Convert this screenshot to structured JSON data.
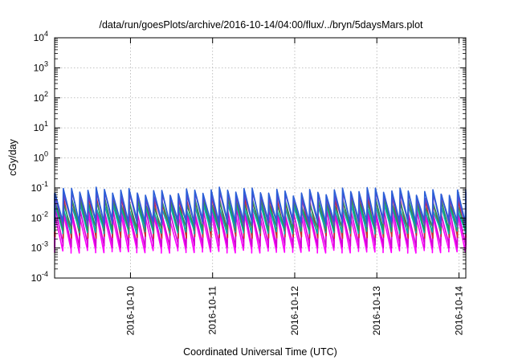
{
  "chart_data": {
    "type": "line",
    "title": "/data/run/goesPlots/archive/2016-10-14/04:00/flux/../bryn/5daysMars.plot",
    "xlabel": "Coordinated Universal Time (UTC)",
    "ylabel": "cGy/day",
    "y_scale": "log",
    "ylim": [
      0.0001,
      10000
    ],
    "xlim": [
      "2016-10-09 01:50",
      "2016-10-14 02:00"
    ],
    "grid": true,
    "x_ticks": [
      "2016-10-10",
      "2016-10-11",
      "2016-10-12",
      "2016-10-13",
      "2016-10-14"
    ],
    "y_ticks": [
      {
        "base": "10",
        "exp": "-4"
      },
      {
        "base": "10",
        "exp": "-3"
      },
      {
        "base": "10",
        "exp": "-2"
      },
      {
        "base": "10",
        "exp": "-1"
      },
      {
        "base": "10",
        "exp": "0"
      },
      {
        "base": "10",
        "exp": "1"
      },
      {
        "base": "10",
        "exp": "2"
      },
      {
        "base": "10",
        "exp": "3"
      },
      {
        "base": "10",
        "exp": "4"
      }
    ],
    "cycles_per_day": 10,
    "series": [
      {
        "color": "#ff00ff",
        "peak": 0.012,
        "trough": 0.0008
      },
      {
        "color": "#d400d4",
        "peak": 0.018,
        "trough": 0.0012
      },
      {
        "color": "#cc2a2a",
        "peak": 0.045,
        "trough": 0.0025
      },
      {
        "color": "#00b2b2",
        "peak": 0.025,
        "trough": 0.0035
      },
      {
        "color": "#1f9a5e",
        "peak": 0.035,
        "trough": 0.0045
      },
      {
        "color": "#6a3fc8",
        "peak": 0.06,
        "trough": 0.006
      },
      {
        "color": "#2a5fd8",
        "peak": 0.08,
        "trough": 0.008
      }
    ]
  }
}
